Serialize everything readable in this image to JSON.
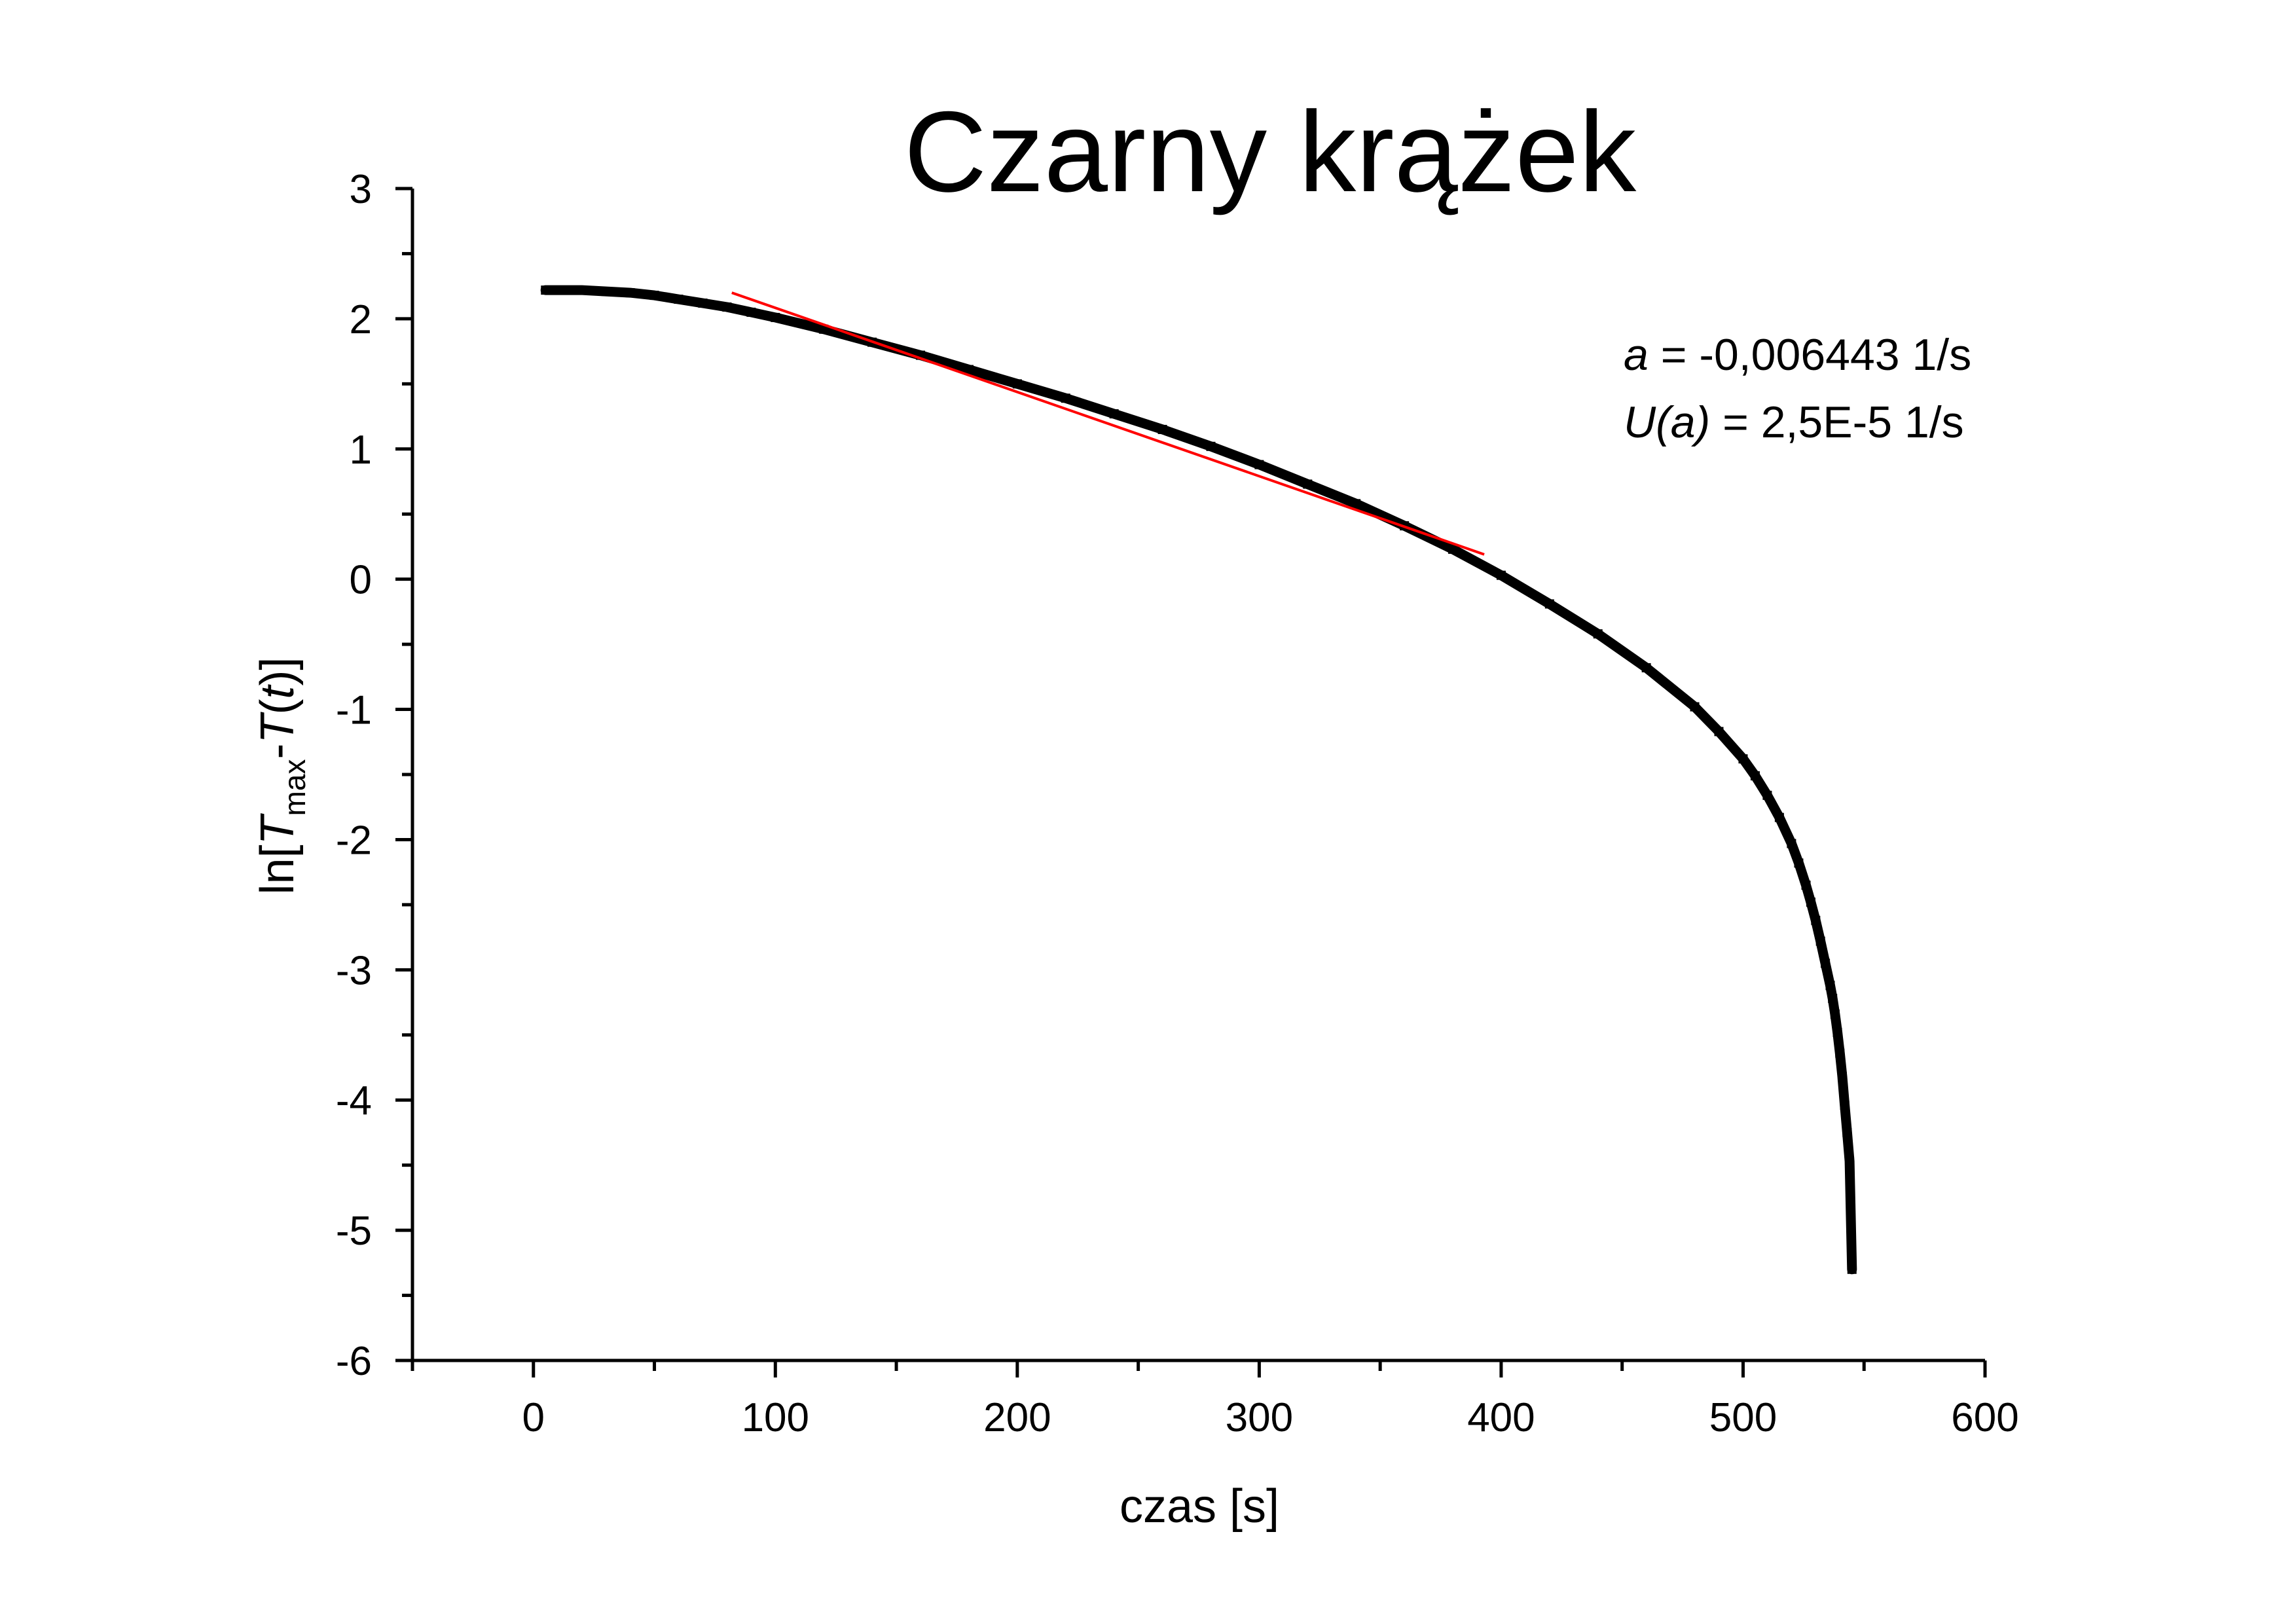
{
  "chart_data": {
    "type": "scatter",
    "title": "Czarny krążek",
    "xlabel": "czas [s]",
    "ylabel": {
      "prefix": "ln[",
      "T": "T",
      "sub": "max",
      "minus": "-",
      "Tt": "T",
      "open": "(",
      "t": "t",
      "close": ")]"
    },
    "xlim": [
      -50,
      600
    ],
    "ylim": [
      -6,
      3
    ],
    "xticks": [
      0,
      100,
      200,
      300,
      400,
      500,
      600
    ],
    "yticks": [
      3,
      2,
      1,
      0,
      -1,
      -2,
      -3,
      -4,
      -5,
      -6
    ],
    "xtick_labels": [
      "0",
      "100",
      "200",
      "300",
      "400",
      "500",
      "600"
    ],
    "ytick_labels": [
      "3",
      "2",
      "1",
      "0",
      "-1",
      "-2",
      "-3",
      "-4",
      "-5",
      "-6"
    ],
    "grid": false,
    "series": [
      {
        "kind": "measured points",
        "color": "#000000",
        "x": [
          5,
          10,
          20,
          30,
          40,
          50,
          60,
          70,
          80,
          90,
          100,
          120,
          140,
          160,
          180,
          200,
          220,
          240,
          260,
          280,
          300,
          320,
          340,
          360,
          380,
          400,
          420,
          440,
          460,
          480,
          490,
          500,
          505,
          510,
          515,
          520,
          523,
          526,
          528,
          530,
          532,
          534,
          536,
          537,
          538,
          539,
          540,
          541,
          542,
          543,
          544,
          545
        ],
        "y": [
          2.22,
          2.22,
          2.22,
          2.21,
          2.2,
          2.18,
          2.15,
          2.12,
          2.09,
          2.05,
          2.01,
          1.92,
          1.82,
          1.72,
          1.61,
          1.5,
          1.39,
          1.27,
          1.15,
          1.02,
          0.88,
          0.73,
          0.58,
          0.41,
          0.23,
          0.03,
          -0.19,
          -0.42,
          -0.68,
          -0.98,
          -1.17,
          -1.38,
          -1.51,
          -1.66,
          -1.83,
          -2.03,
          -2.18,
          -2.35,
          -2.48,
          -2.62,
          -2.78,
          -2.95,
          -3.12,
          -3.22,
          -3.34,
          -3.48,
          -3.64,
          -3.82,
          -4.04,
          -4.25,
          -4.47,
          -5.3
        ]
      },
      {
        "kind": "linear fit",
        "color": "#ff0000",
        "x": [
          82,
          393
        ],
        "y": [
          2.2,
          0.19
        ]
      }
    ],
    "annotations": {
      "a_symbol": "a",
      "a_value": " = -0,006443 1/s",
      "u_symbol": "U(a)",
      "u_value": " = 2,5E-5 1/s"
    }
  }
}
